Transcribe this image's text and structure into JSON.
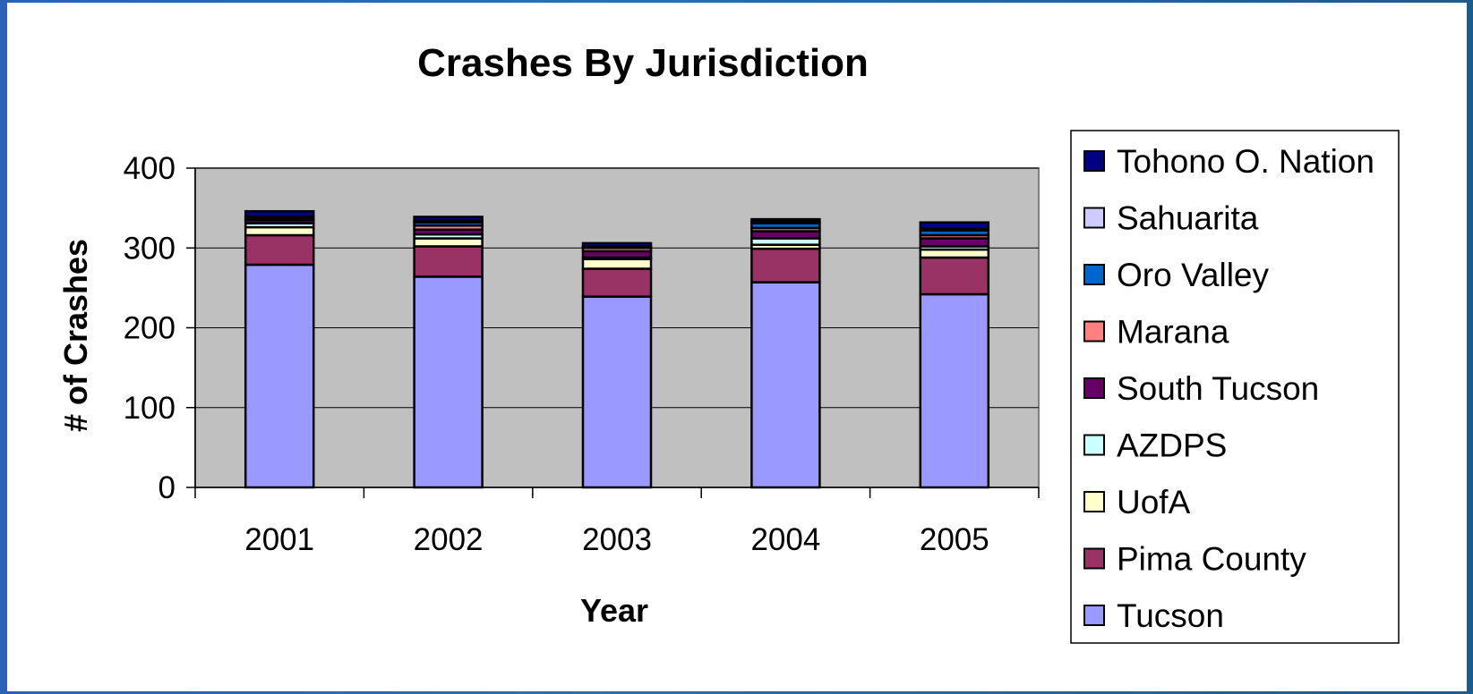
{
  "chart_data": {
    "type": "bar",
    "stacked": true,
    "title": "Crashes By Jurisdiction",
    "xlabel": "Year",
    "ylabel": "# of Crashes",
    "ylim": [
      0,
      400
    ],
    "yticks": [
      0,
      100,
      200,
      300,
      400
    ],
    "grid": true,
    "legend_position": "right",
    "categories": [
      "2001",
      "2002",
      "2003",
      "2004",
      "2005"
    ],
    "series": [
      {
        "name": "Tucson",
        "color": "#9999ff",
        "values": [
          279,
          264,
          239,
          257,
          242
        ]
      },
      {
        "name": "Pima County",
        "color": "#993366",
        "values": [
          37,
          38,
          35,
          42,
          46
        ]
      },
      {
        "name": "UofA",
        "color": "#ffffcc",
        "values": [
          10,
          10,
          12,
          5,
          10
        ]
      },
      {
        "name": "AZDPS",
        "color": "#ccffff",
        "values": [
          5,
          5,
          2,
          8,
          4
        ]
      },
      {
        "name": "South Tucson",
        "color": "#660066",
        "values": [
          4,
          6,
          8,
          9,
          10
        ]
      },
      {
        "name": "Marana",
        "color": "#ff8080",
        "values": [
          1,
          5,
          4,
          4,
          4
        ]
      },
      {
        "name": "Oro Valley",
        "color": "#0066cc",
        "values": [
          2,
          4,
          1,
          6,
          6
        ]
      },
      {
        "name": "Sahuarita",
        "color": "#ccccff",
        "values": [
          1,
          2,
          1,
          2,
          2
        ]
      },
      {
        "name": "Tohono O. Nation",
        "color": "#000080",
        "values": [
          7,
          5,
          4,
          3,
          8
        ]
      }
    ],
    "legend_order": [
      "Tohono O. Nation",
      "Sahuarita",
      "Oro Valley",
      "Marana",
      "South Tucson",
      "AZDPS",
      "UofA",
      "Pima County",
      "Tucson"
    ],
    "colors": {
      "plot_background": "#c0c0c0",
      "gridline": "#000000",
      "slide_border": "#2a62b8"
    }
  }
}
